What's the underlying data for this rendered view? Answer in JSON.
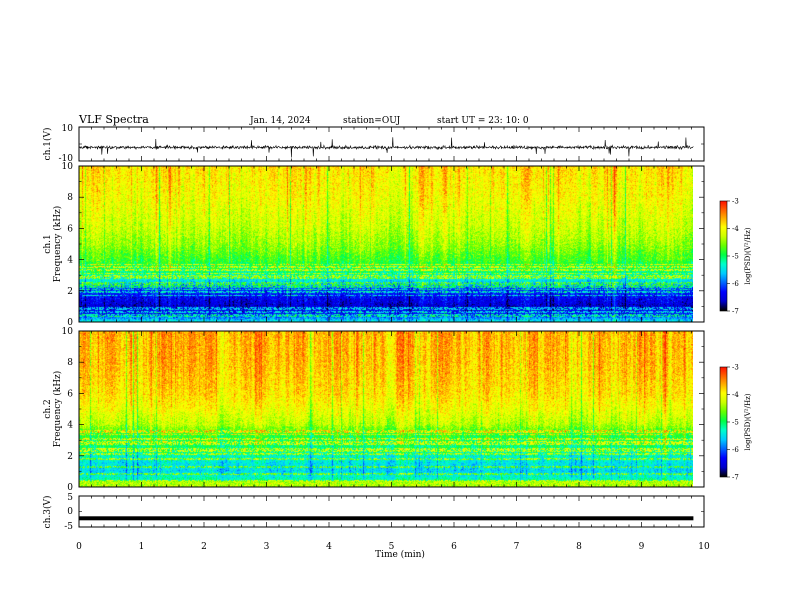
{
  "header": {
    "title": "VLF Spectra",
    "date": "Jan. 14, 2024",
    "station": "station=OUJ",
    "start": "start UT =  23: 10: 0"
  },
  "chart_data": [
    {
      "type": "line",
      "name": "ch1-waveform",
      "ylabel": "ch.1(V)",
      "ylim": [
        -10,
        10
      ],
      "yticks": [
        "10",
        "-10"
      ],
      "xlim": [
        0,
        9.83
      ],
      "baseline_v": -2,
      "amplitude_v": 1.5,
      "spike_v": 6
    },
    {
      "type": "heatmap",
      "name": "ch1-spectrogram",
      "ylabel_line1": "ch.1",
      "ylabel_line2": "Frequency (kHz)",
      "ylim": [
        0,
        10
      ],
      "yticks": [
        "0",
        "2",
        "4",
        "6",
        "8",
        "10"
      ],
      "xlim": [
        0,
        9.83
      ],
      "colorbar": {
        "label": "log(PSD)(V²/Hz)",
        "range": [
          -7,
          -3
        ],
        "ticks": [
          "-3",
          "-4",
          "-5",
          "-6",
          "-7"
        ]
      },
      "profile_logpsd": [
        [
          0,
          -5.5
        ],
        [
          0.5,
          -6.3
        ],
        [
          1,
          -6.6
        ],
        [
          1.5,
          -6.4
        ],
        [
          2,
          -6.2
        ],
        [
          2.5,
          -5.6
        ],
        [
          3,
          -5.2
        ],
        [
          3.5,
          -5.0
        ],
        [
          4,
          -4.8
        ],
        [
          5,
          -4.5
        ],
        [
          6,
          -4.3
        ],
        [
          8,
          -4.05
        ],
        [
          10,
          -3.9
        ]
      ]
    },
    {
      "type": "heatmap",
      "name": "ch2-spectrogram",
      "ylabel_line1": "ch.2",
      "ylabel_line2": "Frequency (kHz)",
      "ylim": [
        0,
        10
      ],
      "yticks": [
        "0",
        "2",
        "4",
        "6",
        "8",
        "10"
      ],
      "xlim": [
        0,
        9.83
      ],
      "colorbar": {
        "label": "log(PSD)(V²/Hz)",
        "range": [
          -7,
          -3
        ],
        "ticks": [
          "-3",
          "-4",
          "-5",
          "-6",
          "-7"
        ]
      },
      "profile_logpsd": [
        [
          0,
          -4.9
        ],
        [
          0.5,
          -5.3
        ],
        [
          1,
          -5.6
        ],
        [
          1.5,
          -5.5
        ],
        [
          2,
          -5.3
        ],
        [
          2.5,
          -5.1
        ],
        [
          3,
          -5.0
        ],
        [
          3.5,
          -4.8
        ],
        [
          4,
          -4.4
        ],
        [
          5,
          -4.1
        ],
        [
          6,
          -3.9
        ],
        [
          8,
          -3.75
        ],
        [
          10,
          -3.7
        ]
      ]
    },
    {
      "type": "line",
      "name": "ch3-waveform",
      "ylabel": "ch.3(V)",
      "ylim": [
        -5,
        5
      ],
      "yticks": [
        "5",
        "0",
        "-5"
      ],
      "xlim": [
        0,
        9.83
      ],
      "baseline_v": -2.2
    }
  ],
  "xaxis": {
    "label": "Time (min)",
    "ticks": [
      "0",
      "1",
      "2",
      "3",
      "4",
      "5",
      "6",
      "7",
      "8",
      "9",
      "10"
    ],
    "range": [
      0,
      10
    ]
  },
  "colors": {
    "colormap": [
      "#000000",
      "#0000cc",
      "#0000ff",
      "#0066ff",
      "#00ccff",
      "#00ffcc",
      "#00ff44",
      "#66ff00",
      "#ccff00",
      "#ffff00",
      "#ffaa00",
      "#ff5500",
      "#ff0000",
      "#ffffff"
    ]
  }
}
